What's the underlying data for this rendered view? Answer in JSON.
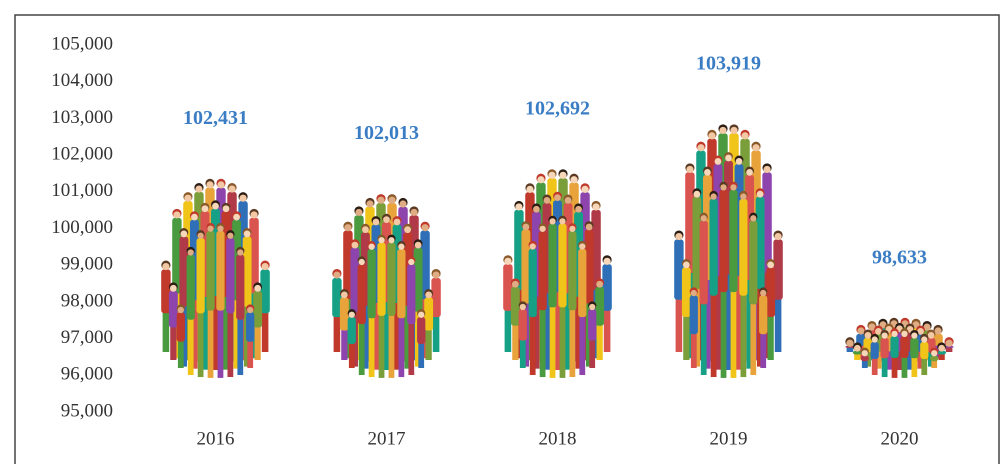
{
  "chart_data": {
    "type": "pictogram-bar",
    "categories": [
      "2016",
      "2017",
      "2018",
      "2019",
      "2020"
    ],
    "values": [
      102431,
      102013,
      102692,
      103919,
      98633
    ],
    "value_labels": [
      "102,431",
      "102,013",
      "102,692",
      "103,919",
      "98,633"
    ],
    "ylim": [
      95000,
      105000
    ],
    "yticks": [
      {
        "value": 95000,
        "label": "95,000"
      },
      {
        "value": 96000,
        "label": "96,000"
      },
      {
        "value": 97000,
        "label": "97,000"
      },
      {
        "value": 98000,
        "label": "98,000"
      },
      {
        "value": 99000,
        "label": "99,000"
      },
      {
        "value": 100000,
        "label": "100,000"
      },
      {
        "value": 101000,
        "label": "101,000"
      },
      {
        "value": 102000,
        "label": "102,000"
      },
      {
        "value": 103000,
        "label": "103,000"
      },
      {
        "value": 104000,
        "label": "104,000"
      },
      {
        "value": 105000,
        "label": "105,000"
      }
    ],
    "label_color": "#3b7dc4"
  }
}
